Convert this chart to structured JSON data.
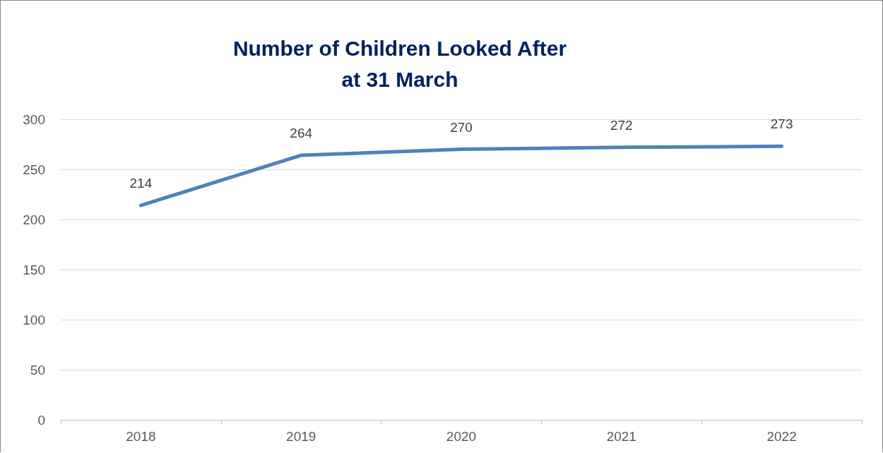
{
  "chart_data": {
    "type": "line",
    "title": "Number of Children Looked After\nat 31 March",
    "categories": [
      "2018",
      "2019",
      "2020",
      "2021",
      "2022"
    ],
    "series": [
      {
        "color": "#4f81bd",
        "values": [
          214,
          264,
          270,
          272,
          273
        ]
      }
    ],
    "ylim": [
      0,
      300
    ],
    "yticks": [
      0,
      50,
      100,
      150,
      200,
      250,
      300
    ],
    "grid": "y",
    "marker": "none",
    "line_style": "solid",
    "data_labels": true
  }
}
